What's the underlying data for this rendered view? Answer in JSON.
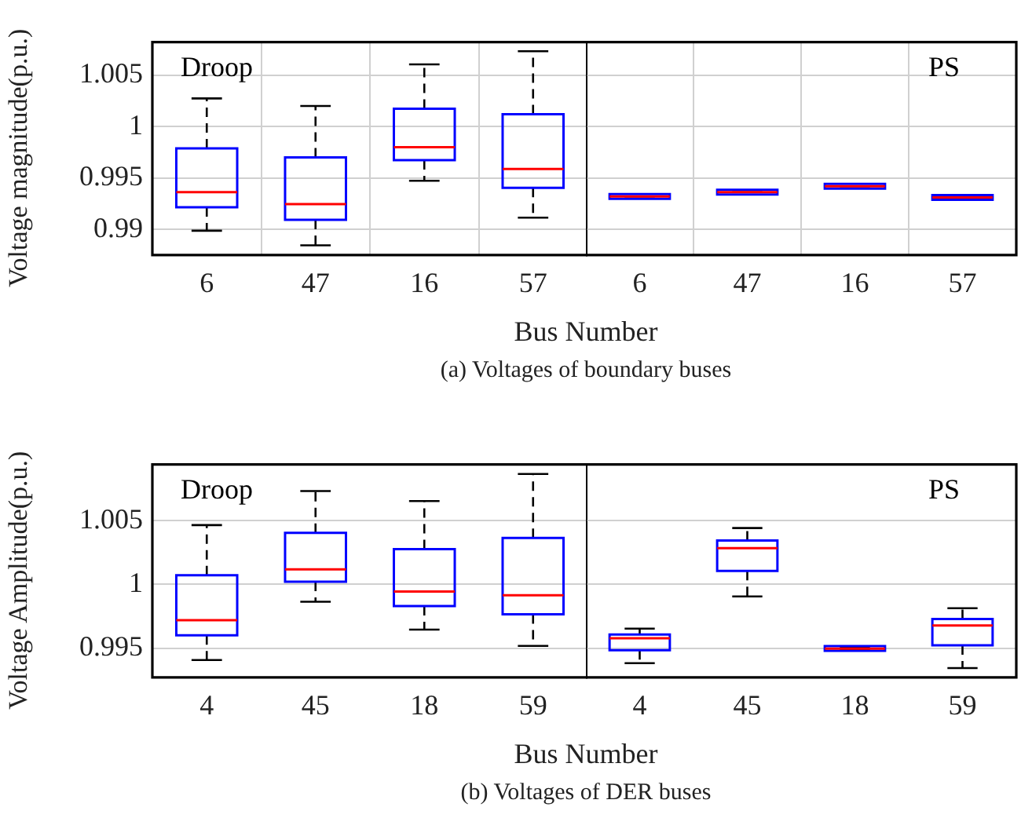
{
  "chart_data": [
    {
      "type": "box",
      "ylabel": "Voltage magnitude(p.u.)",
      "xlabel": "Bus Number",
      "annotations": [
        "Droop",
        "(a) Voltages of boundary buses"
      ],
      "categories": [
        "6",
        "47",
        "16",
        "57"
      ],
      "color": "#0000ff",
      "ylim": [
        0.98753,
        1.00821
      ],
      "yticks": [
        0.99,
        0.995,
        1,
        1.005
      ],
      "grid": true,
      "boxes": [
        {
          "low": 0.98989,
          "q1": 0.99216,
          "median": 0.99363,
          "q3": 0.99789,
          "high": 1.00274
        },
        {
          "low": 0.98847,
          "q1": 0.99095,
          "median": 0.99247,
          "q3": 0.997,
          "high": 1.002
        },
        {
          "low": 0.99474,
          "q1": 0.99674,
          "median": 0.998,
          "q3": 1.00174,
          "high": 1.00605
        },
        {
          "low": 0.99116,
          "q1": 0.99405,
          "median": 0.99589,
          "q3": 1.00121,
          "high": 1.00732
        }
      ]
    },
    {
      "type": "box",
      "annotations": [
        "PS"
      ],
      "categories": [
        "6",
        "47",
        "16",
        "57"
      ],
      "color": "#0000ff",
      "ylim": [
        0.98753,
        1.00821
      ],
      "yticks": [
        0.99,
        0.995,
        1,
        1.005
      ],
      "grid": true,
      "tick_labels": "x",
      "boxes": [
        {
          "low": 0.99321,
          "q1": 0.99321,
          "median": 0.99321,
          "q3": 0.99321,
          "high": 0.99321
        },
        {
          "low": 0.99363,
          "q1": 0.99363,
          "median": 0.99363,
          "q3": 0.99363,
          "high": 0.99363
        },
        {
          "low": 0.99421,
          "q1": 0.99421,
          "median": 0.99421,
          "q3": 0.99421,
          "high": 0.99421
        },
        {
          "low": 0.99311,
          "q1": 0.99311,
          "median": 0.99311,
          "q3": 0.99311,
          "high": 0.99311
        }
      ]
    },
    {
      "type": "box",
      "ylabel": "Voltage Amplitude(p.u.)",
      "xlabel": "Bus Number",
      "annotations": [
        "Droop",
        "(b) Voltages of DER buses"
      ],
      "categories": [
        "4",
        "45",
        "18",
        "59"
      ],
      "color": "#0000ff",
      "ylim": [
        0.9927,
        1.00943
      ],
      "yticks": [
        0.995,
        1,
        1.005
      ],
      "grid": "y",
      "boxes": [
        {
          "low": 0.99406,
          "q1": 0.996,
          "median": 0.99719,
          "q3": 1.00072,
          "high": 1.00466
        },
        {
          "low": 0.99864,
          "q1": 1.00021,
          "median": 1.00119,
          "q3": 1.00406,
          "high": 1.00734
        },
        {
          "low": 0.99645,
          "q1": 0.9983,
          "median": 0.99945,
          "q3": 1.00277,
          "high": 1.00655
        },
        {
          "low": 0.99517,
          "q1": 0.99766,
          "median": 0.99915,
          "q3": 1.00366,
          "high": 1.00868
        }
      ]
    },
    {
      "type": "box",
      "annotations": [
        "PS"
      ],
      "categories": [
        "4",
        "45",
        "18",
        "59"
      ],
      "color": "#0000ff",
      "ylim": [
        0.9927,
        1.00943
      ],
      "yticks": [
        0.995,
        1,
        1.005
      ],
      "grid": "y",
      "tick_labels": "x",
      "boxes": [
        {
          "low": 0.99381,
          "q1": 0.99483,
          "median": 0.99577,
          "q3": 0.99606,
          "high": 0.99653
        },
        {
          "low": 0.99906,
          "q1": 1.00106,
          "median": 1.00285,
          "q3": 1.00345,
          "high": 1.00443
        },
        {
          "low": 0.99488,
          "q1": 0.99494,
          "median": 0.99496,
          "q3": 0.995,
          "high": 0.99502
        },
        {
          "low": 0.99343,
          "q1": 0.99521,
          "median": 0.99677,
          "q3": 0.99728,
          "high": 0.99813
        }
      ]
    }
  ]
}
